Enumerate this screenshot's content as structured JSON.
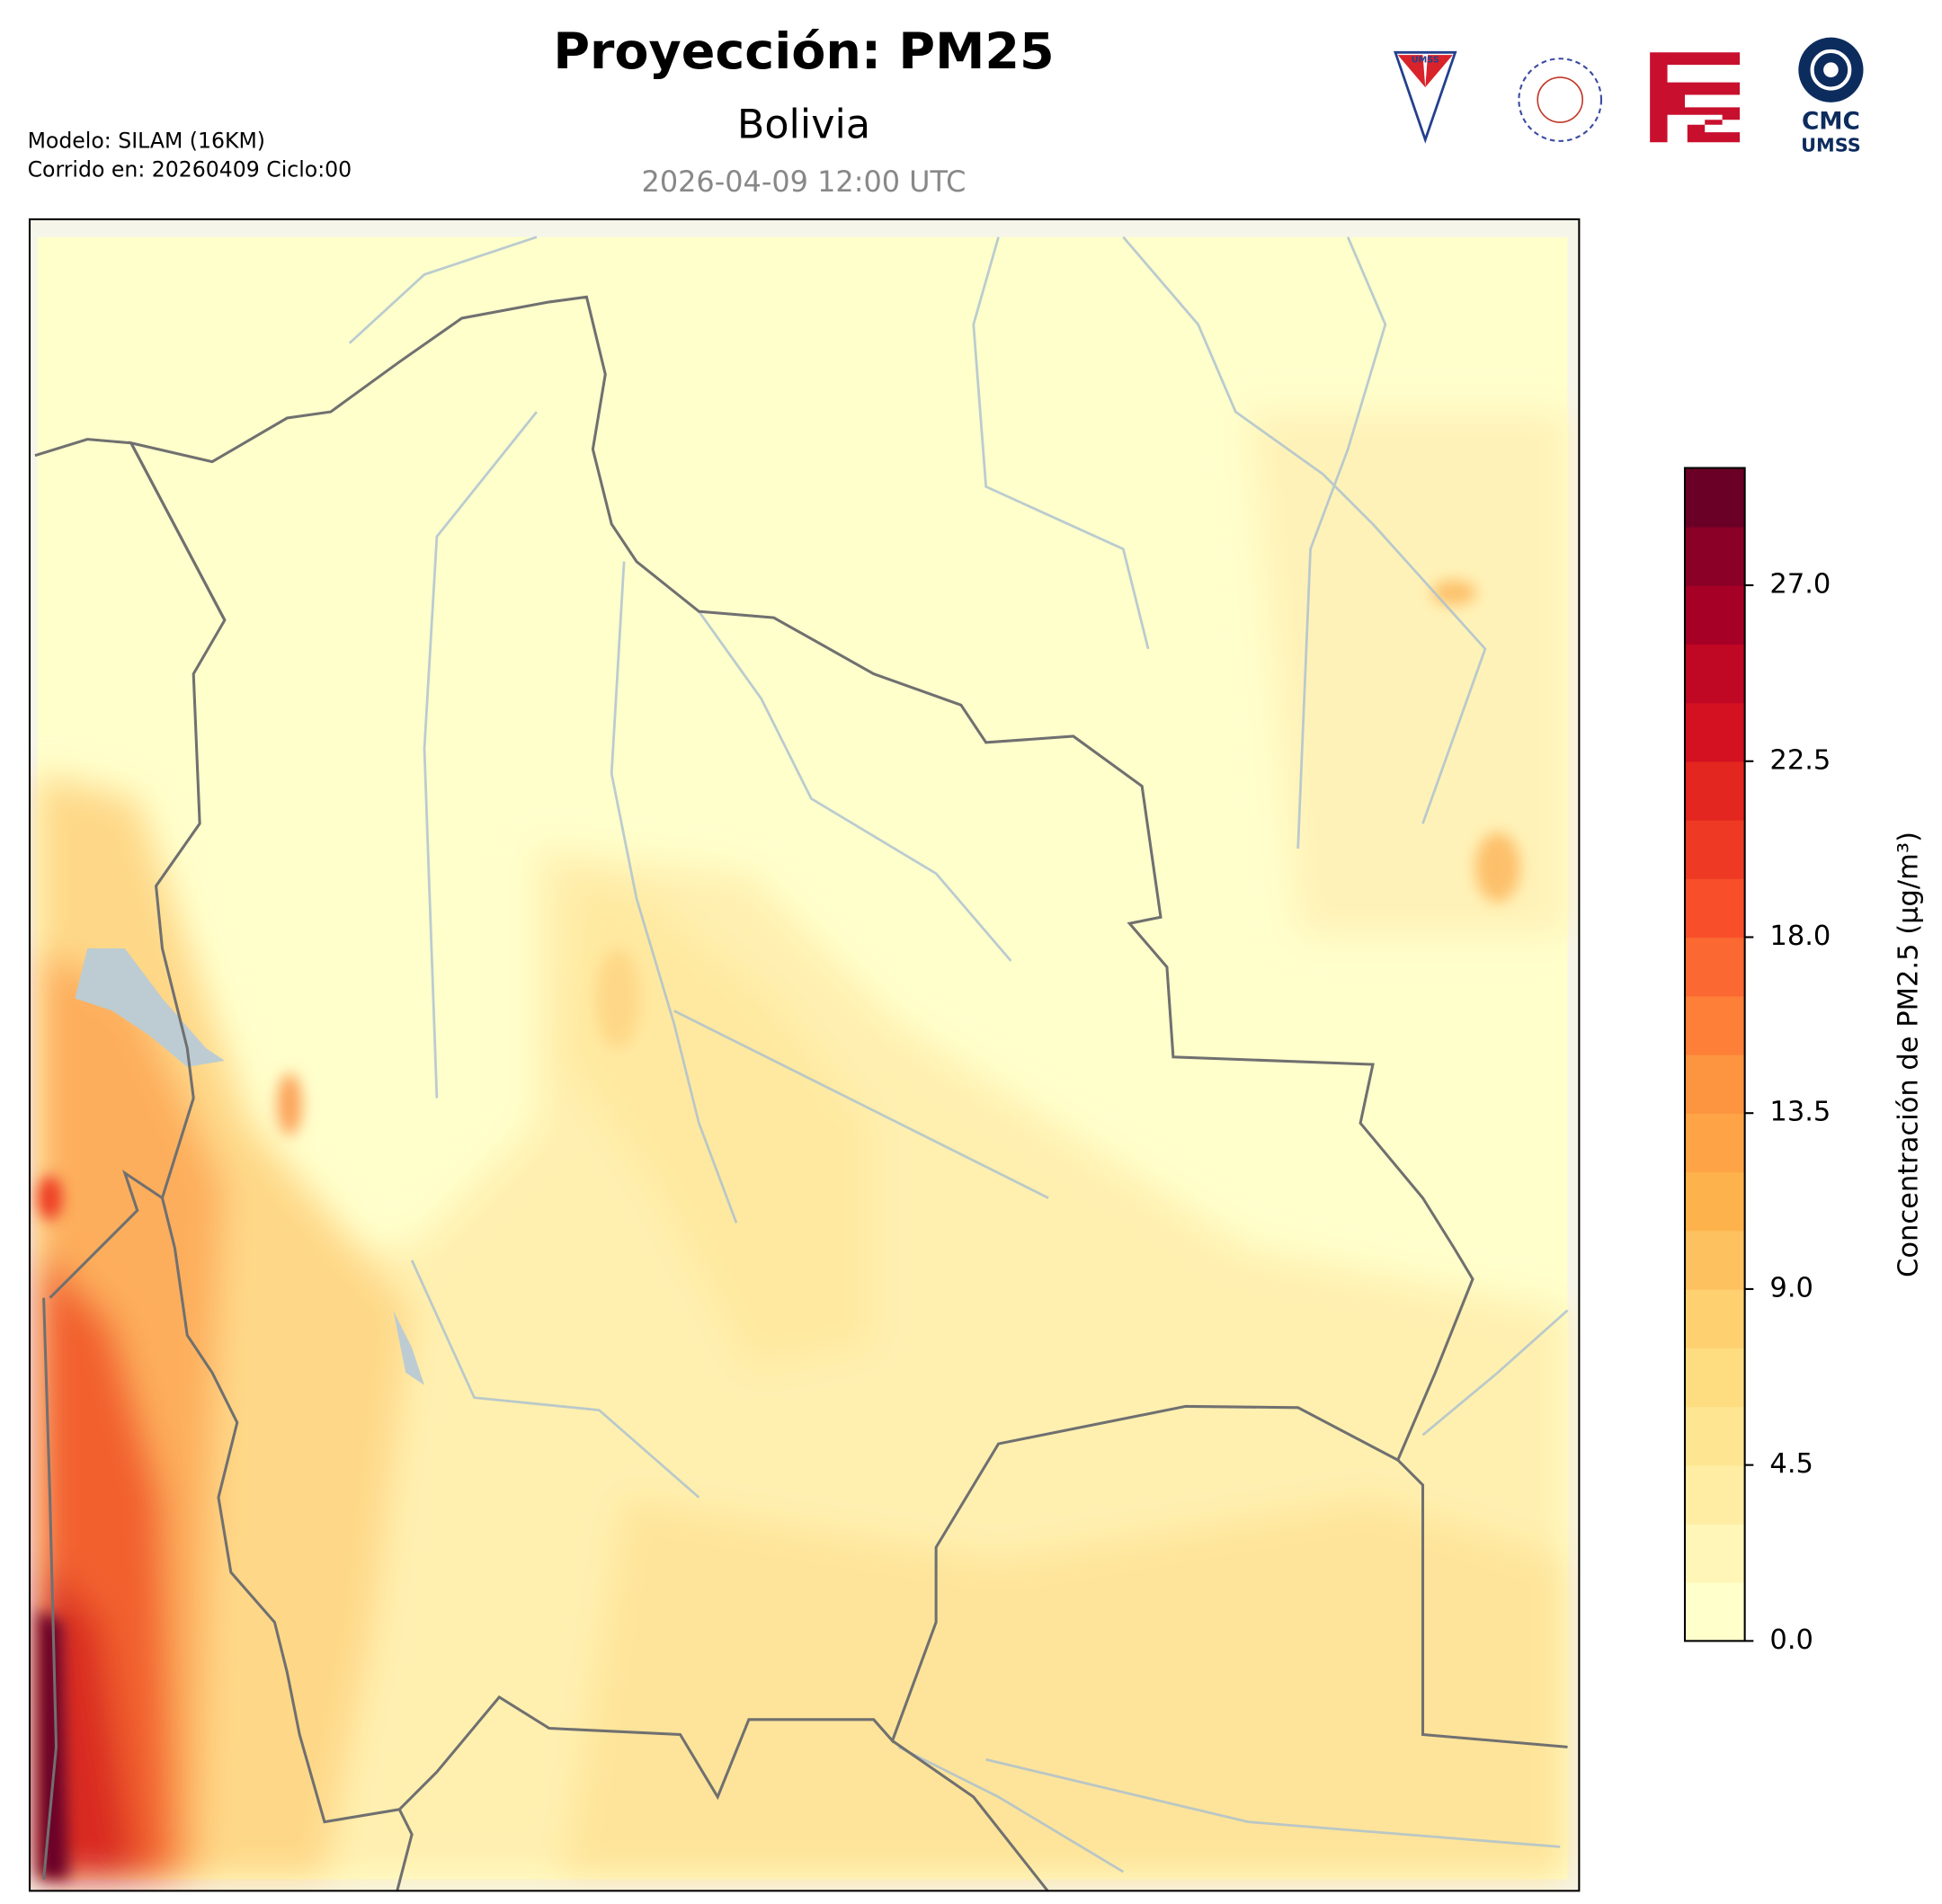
{
  "title": "Proyección: PM25",
  "subtitle": "Bolivia",
  "datetime": "2026-04-09 12:00 UTC",
  "model": "Modelo: SILAM (16KM)",
  "run": "Corrido en: 20260409 Ciclo:00",
  "logos": {
    "umss": "UMSS",
    "cmc": "CMC",
    "cmc_sub": "UMSS"
  },
  "colorbar": {
    "label": "Concentración de PM2.5 (µg/m³)",
    "clim": [
      0,
      30
    ],
    "ticks": [
      {
        "value": 0,
        "label": "0.0"
      },
      {
        "value": 4.5,
        "label": "4.5"
      },
      {
        "value": 9,
        "label": "9.0"
      },
      {
        "value": 13.5,
        "label": "13.5"
      },
      {
        "value": 18,
        "label": "18.0"
      },
      {
        "value": 22.5,
        "label": "22.5"
      },
      {
        "value": 27,
        "label": "27.0"
      }
    ],
    "colors": [
      "#ffffcc",
      "#fff6b8",
      "#ffeda4",
      "#fee591",
      "#fedc80",
      "#fed06f",
      "#fec15f",
      "#feb24c",
      "#fea446",
      "#fd943f",
      "#fd7f38",
      "#fc6831",
      "#f84f2a",
      "#ee3a24",
      "#e3261f",
      "#d31121",
      "#c00724",
      "#a70026",
      "#8a0026",
      "#6b0026"
    ]
  }
}
